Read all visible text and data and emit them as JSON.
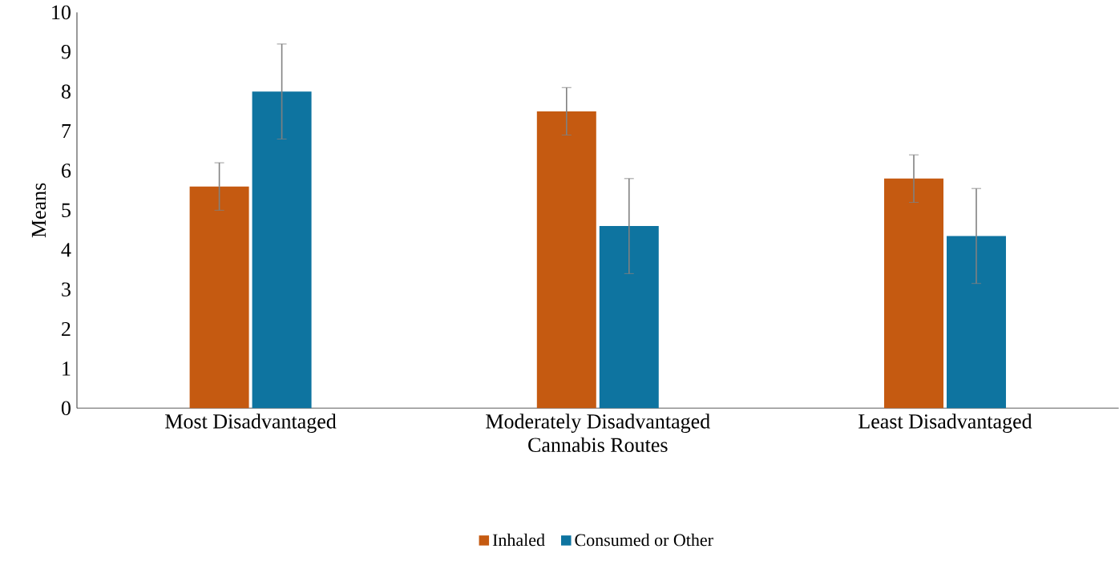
{
  "chart_data": {
    "type": "bar",
    "xlabel": "Cannabis Routes",
    "ylabel": "Means",
    "categories": [
      "Most Disadvantaged",
      "Moderately Disadvantaged",
      "Least Disadvantaged"
    ],
    "series": [
      {
        "name": "Inhaled",
        "color": "#c55a11",
        "values": [
          5.6,
          7.5,
          5.8
        ],
        "errors": [
          0.6,
          0.6,
          0.6
        ]
      },
      {
        "name": "Consumed or Other",
        "color": "#0e74a0",
        "values": [
          8.0,
          4.6,
          4.35
        ],
        "errors": [
          1.2,
          1.2,
          1.2
        ]
      }
    ],
    "ylim": [
      0,
      10
    ],
    "yticks": [
      0,
      1,
      2,
      3,
      4,
      5,
      6,
      7,
      8,
      9,
      10
    ],
    "grid": false,
    "legend": "bottom"
  }
}
